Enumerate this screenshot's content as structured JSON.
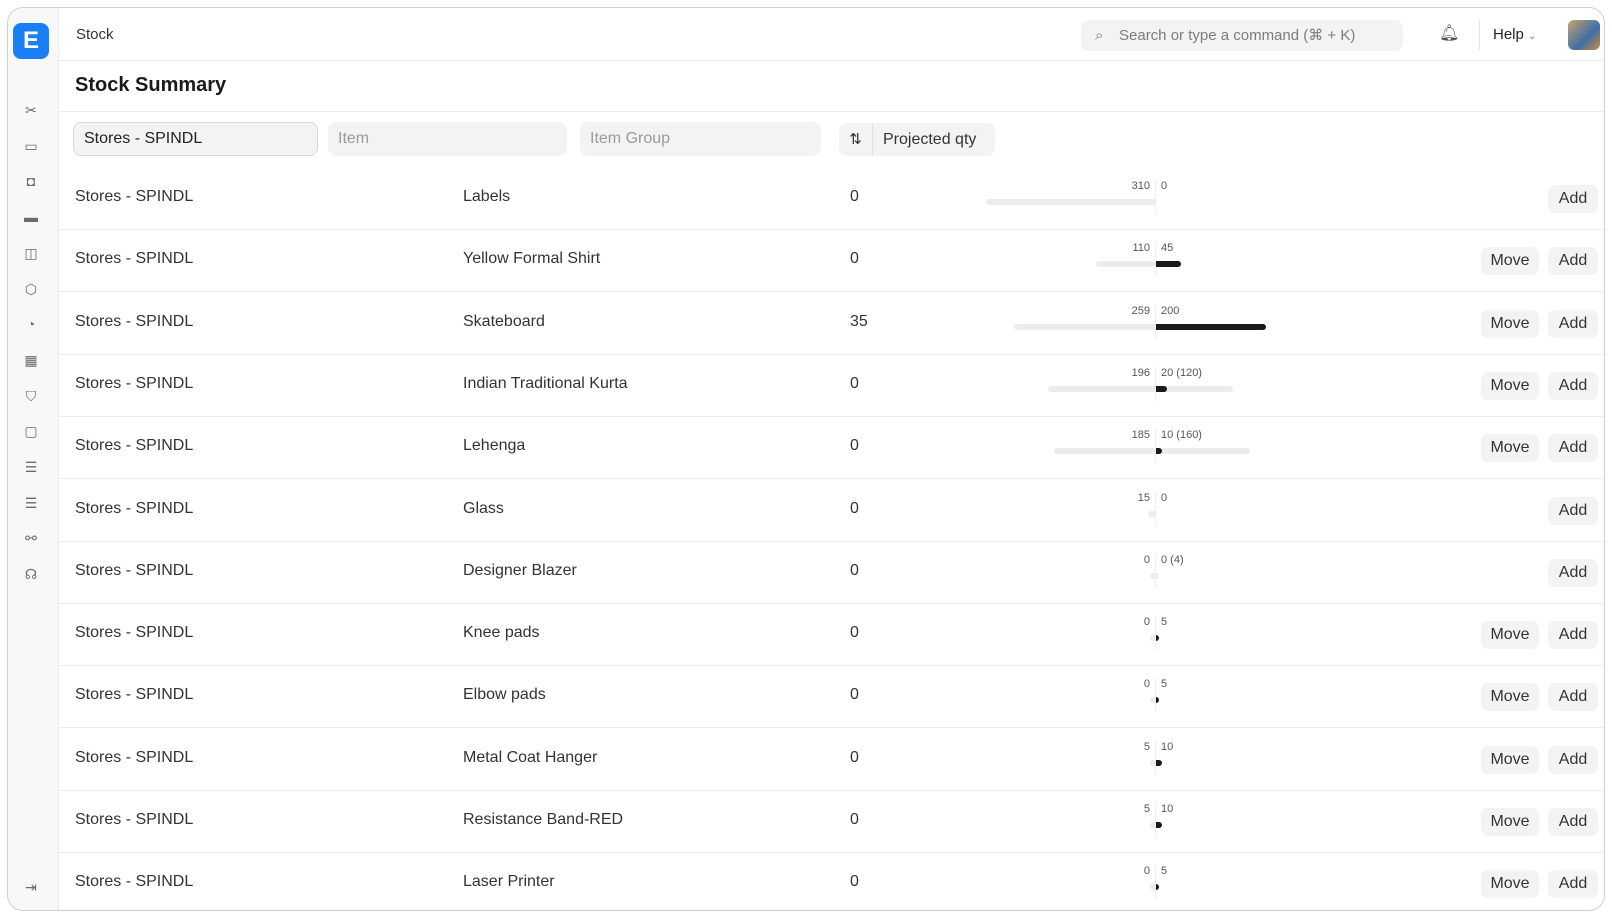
{
  "app": {
    "logo": "E",
    "breadcrumb": "Stock",
    "search_placeholder": "Search or type a command (⌘ + K)",
    "help_label": "Help"
  },
  "sidebar": {
    "icons": [
      "tools-icon",
      "money-icon",
      "briefcase-icon",
      "card-icon",
      "shopping-bag-icon",
      "box-icon",
      "pie-chart-icon",
      "building-icon",
      "shield-icon",
      "folder-icon",
      "toggle-icon",
      "toggle-icon-2",
      "integrations-icon",
      "headset-icon"
    ],
    "collapse_icon": "collapse-sidebar-icon"
  },
  "page": {
    "title": "Stock Summary"
  },
  "filters": {
    "warehouse": "Stores - SPINDL",
    "item_placeholder": "Item",
    "item_group_placeholder": "Item Group",
    "sort_label": "Projected qty"
  },
  "buttons": {
    "move": "Move",
    "add": "Add"
  },
  "colors": {
    "accent": "#1a7ff5",
    "bar_left": "#ececec",
    "bar_right": "#1a1a1a"
  },
  "rows": [
    {
      "warehouse": "Stores - SPINDL",
      "item": "Labels",
      "qty": "0",
      "left": 310,
      "right": 0,
      "right_label": "0",
      "pending": null,
      "move": false
    },
    {
      "warehouse": "Stores - SPINDL",
      "item": "Yellow Formal Shirt",
      "qty": "0",
      "left": 110,
      "right": 45,
      "right_label": "45",
      "pending": null,
      "move": true
    },
    {
      "warehouse": "Stores - SPINDL",
      "item": "Skateboard",
      "qty": "35",
      "left": 259,
      "right": 200,
      "right_label": "200",
      "pending": null,
      "move": true
    },
    {
      "warehouse": "Stores - SPINDL",
      "item": "Indian Traditional Kurta",
      "qty": "0",
      "left": 196,
      "right": 20,
      "right_label": "20 (120)",
      "pending": 120,
      "move": true
    },
    {
      "warehouse": "Stores - SPINDL",
      "item": "Lehenga",
      "qty": "0",
      "left": 185,
      "right": 10,
      "right_label": "10 (160)",
      "pending": 160,
      "move": true
    },
    {
      "warehouse": "Stores - SPINDL",
      "item": "Glass",
      "qty": "0",
      "left": 15,
      "right": 0,
      "right_label": "0",
      "pending": null,
      "move": false
    },
    {
      "warehouse": "Stores - SPINDL",
      "item": "Designer Blazer",
      "qty": "0",
      "left": 0,
      "right": 0,
      "right_label": "0 (4)",
      "pending": 4,
      "move": false
    },
    {
      "warehouse": "Stores - SPINDL",
      "item": "Knee pads",
      "qty": "0",
      "left": 0,
      "right": 5,
      "right_label": "5",
      "pending": null,
      "move": true
    },
    {
      "warehouse": "Stores - SPINDL",
      "item": "Elbow pads",
      "qty": "0",
      "left": 0,
      "right": 5,
      "right_label": "5",
      "pending": null,
      "move": true
    },
    {
      "warehouse": "Stores - SPINDL",
      "item": "Metal Coat Hanger",
      "qty": "0",
      "left": 5,
      "right": 10,
      "right_label": "10",
      "pending": null,
      "move": true
    },
    {
      "warehouse": "Stores - SPINDL",
      "item": "Resistance Band-RED",
      "qty": "0",
      "left": 5,
      "right": 10,
      "right_label": "10",
      "pending": null,
      "move": true
    },
    {
      "warehouse": "Stores - SPINDL",
      "item": "Laser Printer",
      "qty": "0",
      "left": 0,
      "right": 5,
      "right_label": "5",
      "pending": null,
      "move": true
    }
  ]
}
